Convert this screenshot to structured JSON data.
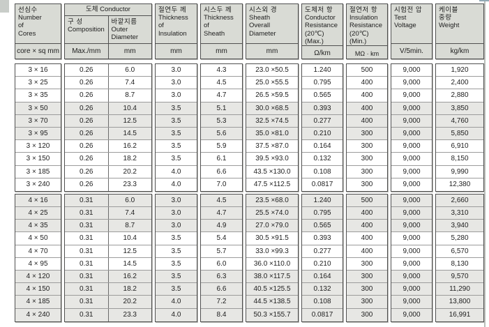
{
  "table": {
    "columns": [
      {
        "ko": "선심수",
        "en": "Number\nof\nCores",
        "unit": "core × sq mm"
      },
      {
        "title": "도체 Conductor",
        "subs": [
          {
            "ko": "구 성",
            "en": "Composition",
            "unit": "Max./mm"
          },
          {
            "ko": "바깥지름",
            "en": "Outer\nDiameter",
            "unit": "mm"
          }
        ]
      },
      {
        "ko": "절연두 께",
        "en": "Thickness\nof\nInsulation",
        "unit": "mm"
      },
      {
        "ko": "시스두 께",
        "en": "Thickness\nof\nSheath",
        "unit": "mm"
      },
      {
        "ko": "시스외 경",
        "en": "Sheath\nOverall\nDiameter",
        "unit": "mm"
      },
      {
        "ko": "도체저 항",
        "en": "Conductor\nResistance\n(20℃)(Max.)",
        "unit": "Ω/km"
      },
      {
        "ko": "절연저 항",
        "en": "Insulation\nResistance\n(20℃)(Min.)",
        "unit": "MΩ · km"
      },
      {
        "ko": "시험전 압",
        "en": "Test\nVoltage",
        "unit": "V/5min."
      },
      {
        "ko": "케이블\n중량",
        "en": "Weight",
        "unit": "kg/km"
      }
    ],
    "rows": [
      {
        "shaded": false,
        "cells": [
          "3 × 16",
          "0.26",
          "6.0",
          "3.0",
          "4.3",
          "23.0 ×50.5",
          "1.240",
          "500",
          "9,000",
          "1,920"
        ]
      },
      {
        "shaded": false,
        "cells": [
          "3 × 25",
          "0.26",
          "7.4",
          "3.0",
          "4.5",
          "25.0 ×55.5",
          "0.795",
          "400",
          "9,000",
          "2,400"
        ]
      },
      {
        "shaded": false,
        "cells": [
          "3 × 35",
          "0.26",
          "8.7",
          "3.0",
          "4.7",
          "26.5 ×59.5",
          "0.565",
          "400",
          "9,000",
          "2,880"
        ]
      },
      {
        "shaded": true,
        "cells": [
          "3 × 50",
          "0.26",
          "10.4",
          "3.5",
          "5.1",
          "30.0 ×68.5",
          "0.393",
          "400",
          "9,000",
          "3,850"
        ]
      },
      {
        "shaded": true,
        "cells": [
          "3 × 70",
          "0.26",
          "12.5",
          "3.5",
          "5.3",
          "32.5 ×74.5",
          "0.277",
          "400",
          "9,000",
          "4,760"
        ]
      },
      {
        "shaded": true,
        "cells": [
          "3 × 95",
          "0.26",
          "14.5",
          "3.5",
          "5.6",
          "35.0 ×81.0",
          "0.210",
          "300",
          "9,000",
          "5,850"
        ]
      },
      {
        "shaded": false,
        "cells": [
          "3 × 120",
          "0.26",
          "16.2",
          "3.5",
          "5.9",
          "37.5 ×87.0",
          "0.164",
          "300",
          "9,000",
          "6,910"
        ]
      },
      {
        "shaded": false,
        "cells": [
          "3 × 150",
          "0.26",
          "18.2",
          "3.5",
          "6.1",
          "39.5 ×93.0",
          "0.132",
          "300",
          "9,000",
          "8,150"
        ]
      },
      {
        "shaded": false,
        "cells": [
          "3 × 185",
          "0.26",
          "20.2",
          "4.0",
          "6.6",
          "43.5 ×130.0",
          "0.108",
          "300",
          "9,000",
          "9,990"
        ]
      },
      {
        "shaded": false,
        "cells": [
          "3 × 240",
          "0.26",
          "23.3",
          "4.0",
          "7.0",
          "47.5 ×112.5",
          "0.0817",
          "300",
          "9,000",
          "12,380"
        ]
      },
      {
        "shaded": true,
        "cells": [
          "4 × 16",
          "0.31",
          "6.0",
          "3.0",
          "4.5",
          "23.5 ×68.0",
          "1.240",
          "500",
          "9,000",
          "2,660"
        ]
      },
      {
        "shaded": true,
        "cells": [
          "4 × 25",
          "0.31",
          "7.4",
          "3.0",
          "4.7",
          "25.5 ×74.0",
          "0.795",
          "400",
          "9,000",
          "3,310"
        ]
      },
      {
        "shaded": true,
        "cells": [
          "4 × 35",
          "0.31",
          "8.7",
          "3.0",
          "4.9",
          "27.0 ×79.0",
          "0.565",
          "400",
          "9,000",
          "3,940"
        ]
      },
      {
        "shaded": false,
        "cells": [
          "4 × 50",
          "0.31",
          "10.4",
          "3.5",
          "5.4",
          "30.5 ×91.5",
          "0.393",
          "400",
          "9,000",
          "5,280"
        ]
      },
      {
        "shaded": false,
        "cells": [
          "4 × 70",
          "0.31",
          "12.5",
          "3.5",
          "5.7",
          "33.0 ×99.3",
          "0.277",
          "400",
          "9,000",
          "6,570"
        ]
      },
      {
        "shaded": false,
        "cells": [
          "4 × 95",
          "0.31",
          "14.5",
          "3.5",
          "6.0",
          "36.0 ×110.0",
          "0.210",
          "300",
          "9,000",
          "8,130"
        ]
      },
      {
        "shaded": true,
        "cells": [
          "4 × 120",
          "0.31",
          "16.2",
          "3.5",
          "6.3",
          "38.0 ×117.5",
          "0.164",
          "300",
          "9,000",
          "9,570"
        ]
      },
      {
        "shaded": true,
        "cells": [
          "4 × 150",
          "0.31",
          "18.2",
          "3.5",
          "6.6",
          "40.5 ×125.5",
          "0.132",
          "300",
          "9,000",
          "11,290"
        ]
      },
      {
        "shaded": true,
        "cells": [
          "4 × 185",
          "0.31",
          "20.2",
          "4.0",
          "7.2",
          "44.5 ×138.5",
          "0.108",
          "300",
          "9,000",
          "13,800"
        ]
      },
      {
        "shaded": true,
        "cells": [
          "4 × 240",
          "0.31",
          "23.3",
          "4.0",
          "8.4",
          "50.3 ×155.7",
          "0.0817",
          "300",
          "9,000",
          "16,991"
        ]
      }
    ],
    "colors": {
      "header_bg": "#d9dbd5",
      "shaded_row_bg": "#e7e7e4",
      "border": "#4f4f4f"
    }
  }
}
